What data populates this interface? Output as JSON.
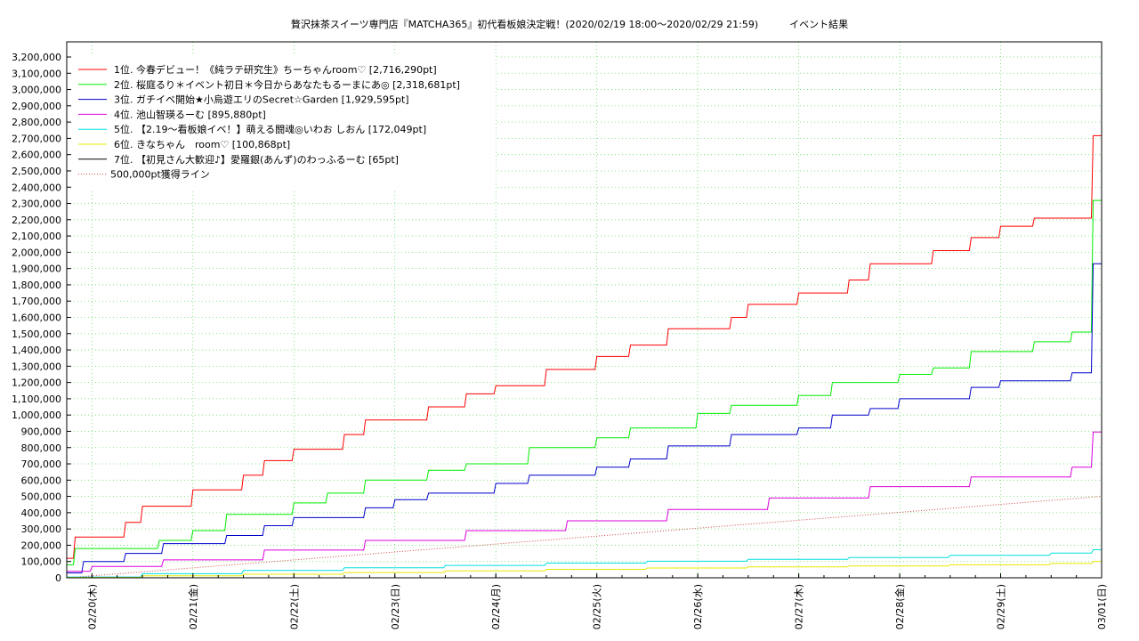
{
  "chart_data": {
    "type": "line",
    "title": "贅沢抹茶スイーツ専門店『MATCHA365』初代看板娘決定戦！(2020/02/19 18:00〜2020/02/29 21:59)          イベント結果",
    "xlabel": "",
    "ylabel": "",
    "ylim": [
      0,
      3200000
    ],
    "xlim": [
      "2020-02-19 18:00",
      "2020-03-01 00:00"
    ],
    "x_ticks": [
      "02/20(木)",
      "02/21(金)",
      "02/22(土)",
      "02/23(日)",
      "02/24(月)",
      "02/25(火)",
      "02/26(水)",
      "02/27(木)",
      "02/28(金)",
      "02/29(土)",
      "03/01(日)"
    ],
    "y_ticks": [
      "0",
      "100,000",
      "200,000",
      "300,000",
      "400,000",
      "500,000",
      "600,000",
      "700,000",
      "800,000",
      "900,000",
      "1,000,000",
      "1,100,000",
      "1,200,000",
      "1,300,000",
      "1,400,000",
      "1,500,000",
      "1,600,000",
      "1,700,000",
      "1,800,000",
      "1,900,000",
      "2,000,000",
      "2,100,000",
      "2,200,000",
      "2,300,000",
      "2,400,000",
      "2,500,000",
      "2,600,000",
      "2,700,000",
      "2,800,000",
      "2,900,000",
      "3,000,000",
      "3,100,000",
      "3,200,000"
    ],
    "grid": true,
    "legend_position": "top-left",
    "series": [
      {
        "name": "1位. 今春デビュー！《純ラテ研究生》ちーちゃんroom♡ [2,716,290pt]",
        "color": "#ff0000",
        "style": "solid",
        "x": [
          "2020-02-19 18:00",
          "2020-02-19 20:00",
          "2020-02-20 00:00",
          "2020-02-20 08:00",
          "2020-02-20 12:00",
          "2020-02-20 17:00",
          "2020-02-21 00:00",
          "2020-02-21 08:00",
          "2020-02-21 12:00",
          "2020-02-21 17:00",
          "2020-02-22 00:00",
          "2020-02-22 08:00",
          "2020-02-22 12:00",
          "2020-02-22 17:00",
          "2020-02-23 00:00",
          "2020-02-23 08:00",
          "2020-02-23 12:00",
          "2020-02-23 17:00",
          "2020-02-24 00:00",
          "2020-02-24 08:00",
          "2020-02-24 12:00",
          "2020-02-24 17:00",
          "2020-02-25 00:00",
          "2020-02-25 08:00",
          "2020-02-25 12:00",
          "2020-02-25 17:00",
          "2020-02-26 00:00",
          "2020-02-26 08:00",
          "2020-02-26 12:00",
          "2020-02-26 17:00",
          "2020-02-27 00:00",
          "2020-02-27 08:00",
          "2020-02-27 12:00",
          "2020-02-27 17:00",
          "2020-02-28 00:00",
          "2020-02-28 08:00",
          "2020-02-28 12:00",
          "2020-02-28 17:00",
          "2020-02-29 00:00",
          "2020-02-29 08:00",
          "2020-02-29 12:00",
          "2020-02-29 21:59"
        ],
        "values": [
          120000,
          250000,
          250000,
          340000,
          440000,
          440000,
          540000,
          540000,
          630000,
          720000,
          790000,
          790000,
          880000,
          970000,
          970000,
          1050000,
          1050000,
          1130000,
          1180000,
          1180000,
          1280000,
          1280000,
          1360000,
          1430000,
          1430000,
          1530000,
          1530000,
          1600000,
          1680000,
          1680000,
          1750000,
          1750000,
          1830000,
          1930000,
          1930000,
          2010000,
          2010000,
          2090000,
          2160000,
          2210000,
          2210000,
          2716290
        ]
      },
      {
        "name": "2位. 桜庭るり＊イベント初日＊今日からあなたもるーまにあ◎ [2,318,681pt]",
        "color": "#00ee00",
        "style": "solid",
        "x": [
          "2020-02-19 18:00",
          "2020-02-19 20:00",
          "2020-02-20 08:00",
          "2020-02-20 16:00",
          "2020-02-21 00:00",
          "2020-02-21 08:00",
          "2020-02-21 17:00",
          "2020-02-22 00:00",
          "2020-02-22 08:00",
          "2020-02-22 17:00",
          "2020-02-23 00:00",
          "2020-02-23 08:00",
          "2020-02-23 17:00",
          "2020-02-24 00:00",
          "2020-02-24 08:00",
          "2020-02-24 17:00",
          "2020-02-25 00:00",
          "2020-02-25 08:00",
          "2020-02-25 17:00",
          "2020-02-26 00:00",
          "2020-02-26 08:00",
          "2020-02-26 17:00",
          "2020-02-27 00:00",
          "2020-02-27 08:00",
          "2020-02-27 17:00",
          "2020-02-28 00:00",
          "2020-02-28 08:00",
          "2020-02-28 17:00",
          "2020-02-29 00:00",
          "2020-02-29 08:00",
          "2020-02-29 17:00",
          "2020-02-29 21:59"
        ],
        "values": [
          80000,
          180000,
          180000,
          230000,
          290000,
          390000,
          390000,
          460000,
          520000,
          600000,
          600000,
          660000,
          700000,
          700000,
          800000,
          800000,
          860000,
          920000,
          920000,
          1010000,
          1060000,
          1060000,
          1120000,
          1200000,
          1200000,
          1250000,
          1290000,
          1390000,
          1390000,
          1450000,
          1510000,
          2318681
        ]
      },
      {
        "name": "3位. ガチイベ開始★小烏遊エリのSecret☆Garden [1,929,595pt]",
        "color": "#0000cc",
        "style": "solid",
        "x": [
          "2020-02-19 18:00",
          "2020-02-19 22:00",
          "2020-02-20 08:00",
          "2020-02-20 17:00",
          "2020-02-21 00:00",
          "2020-02-21 08:00",
          "2020-02-21 17:00",
          "2020-02-22 00:00",
          "2020-02-22 08:00",
          "2020-02-22 17:00",
          "2020-02-23 00:00",
          "2020-02-23 08:00",
          "2020-02-23 17:00",
          "2020-02-24 00:00",
          "2020-02-24 08:00",
          "2020-02-24 17:00",
          "2020-02-25 00:00",
          "2020-02-25 08:00",
          "2020-02-25 17:00",
          "2020-02-26 00:00",
          "2020-02-26 08:00",
          "2020-02-26 17:00",
          "2020-02-27 00:00",
          "2020-02-27 08:00",
          "2020-02-27 17:00",
          "2020-02-28 00:00",
          "2020-02-28 08:00",
          "2020-02-28 17:00",
          "2020-02-29 00:00",
          "2020-02-29 08:00",
          "2020-02-29 17:00",
          "2020-02-29 21:59"
        ],
        "values": [
          30000,
          100000,
          150000,
          210000,
          210000,
          260000,
          320000,
          370000,
          370000,
          430000,
          480000,
          520000,
          520000,
          580000,
          630000,
          630000,
          680000,
          730000,
          810000,
          810000,
          880000,
          880000,
          920000,
          1000000,
          1040000,
          1100000,
          1100000,
          1170000,
          1210000,
          1210000,
          1260000,
          1929595
        ]
      },
      {
        "name": "4位. 池山智瑛るーむ [895,880pt]",
        "color": "#dd00dd",
        "style": "solid",
        "x": [
          "2020-02-19 18:00",
          "2020-02-20 00:00",
          "2020-02-20 17:00",
          "2020-02-21 17:00",
          "2020-02-22 17:00",
          "2020-02-23 17:00",
          "2020-02-24 17:00",
          "2020-02-25 17:00",
          "2020-02-26 17:00",
          "2020-02-27 17:00",
          "2020-02-28 17:00",
          "2020-02-29 17:00",
          "2020-02-29 21:59"
        ],
        "values": [
          40000,
          70000,
          110000,
          170000,
          230000,
          290000,
          350000,
          420000,
          490000,
          560000,
          620000,
          680000,
          895880
        ]
      },
      {
        "name": "5位. 【2.19〜看板娘イベ！】萌える闘魂◎いわお しおん [172,049pt]",
        "color": "#00e0e0",
        "style": "solid",
        "x": [
          "2020-02-19 18:00",
          "2020-02-20 12:00",
          "2020-02-21 12:00",
          "2020-02-22 12:00",
          "2020-02-23 12:00",
          "2020-02-24 12:00",
          "2020-02-25 12:00",
          "2020-02-26 12:00",
          "2020-02-27 12:00",
          "2020-02-28 12:00",
          "2020-02-29 12:00",
          "2020-02-29 21:59"
        ],
        "values": [
          5000,
          25000,
          45000,
          62000,
          76000,
          90000,
          102000,
          113000,
          124000,
          138000,
          152000,
          172049
        ]
      },
      {
        "name": "6位. きなちゃん　room♡ [100,868pt]",
        "color": "#e8e800",
        "style": "solid",
        "x": [
          "2020-02-19 18:00",
          "2020-02-20 12:00",
          "2020-02-21 12:00",
          "2020-02-22 12:00",
          "2020-02-23 12:00",
          "2020-02-24 12:00",
          "2020-02-25 12:00",
          "2020-02-26 12:00",
          "2020-02-27 12:00",
          "2020-02-28 12:00",
          "2020-02-29 12:00",
          "2020-02-29 21:59"
        ],
        "values": [
          2000,
          12000,
          22000,
          32000,
          42000,
          52000,
          60000,
          67000,
          73000,
          80000,
          88000,
          100868
        ]
      },
      {
        "name": "7位. 【初見さん大歓迎♪】愛羅銀(あんず)のわっふるーむ [65pt]",
        "color": "#000000",
        "style": "solid",
        "x": [
          "2020-02-19 18:00",
          "2020-02-29 21:59"
        ],
        "values": [
          0,
          65
        ]
      },
      {
        "name": "500,000pt獲得ライン",
        "color": "#cc4444",
        "style": "dotted",
        "x": [
          "2020-02-19 18:00",
          "2020-03-01 00:00"
        ],
        "values": [
          0,
          500000
        ]
      }
    ]
  }
}
